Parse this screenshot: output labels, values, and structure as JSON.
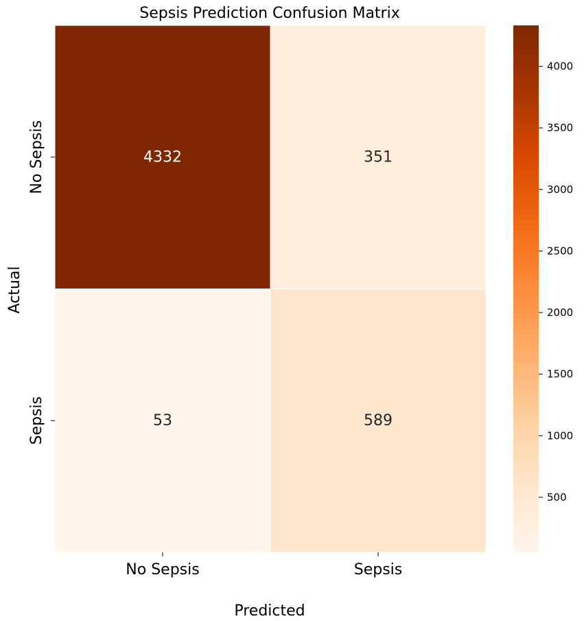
{
  "chart_data": {
    "type": "heatmap",
    "title": "Sepsis Prediction Confusion Matrix",
    "xlabel": "Predicted",
    "ylabel": "Actual",
    "x_categories": [
      "No Sepsis",
      "Sepsis"
    ],
    "y_categories": [
      "No Sepsis",
      "Sepsis"
    ],
    "values": [
      [
        4332,
        351
      ],
      [
        53,
        589
      ]
    ],
    "colormap": "Oranges",
    "colorbar": {
      "range": [
        53,
        4332
      ],
      "ticks": [
        500,
        1000,
        1500,
        2000,
        2500,
        3000,
        3500,
        4000
      ]
    },
    "grid": false
  }
}
